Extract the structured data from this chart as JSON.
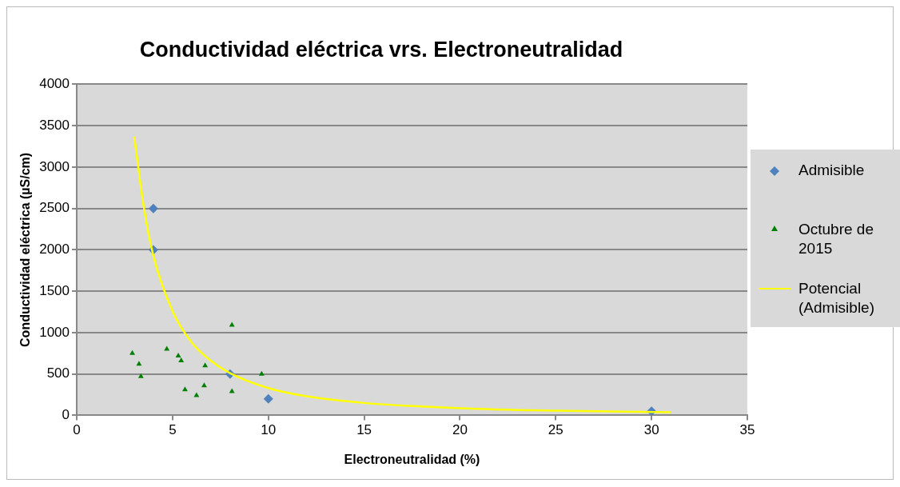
{
  "chart_data": {
    "type": "scatter",
    "title": "Conductividad eléctrica vrs. Electroneutralidad",
    "xlabel": "Electroneutralidad (%)",
    "ylabel": "Conductividad eléctrica (µS/cm)",
    "xlim": [
      0,
      35
    ],
    "xticks": [
      0,
      5,
      10,
      15,
      20,
      25,
      30,
      35
    ],
    "ylim": [
      0,
      4000
    ],
    "yticks": [
      0,
      500,
      1000,
      1500,
      2000,
      2500,
      3000,
      3500,
      4000
    ],
    "grid": "y",
    "legend": "right",
    "series": [
      {
        "name": "Admisible",
        "color": "#4f81bd",
        "marker": "diamond",
        "x": [
          4,
          4,
          8,
          10,
          30
        ],
        "values": [
          2500,
          2000,
          500,
          200,
          50
        ]
      },
      {
        "name": "Octubre de 2015",
        "color": "#008000",
        "marker": "triangle",
        "x": [
          2.9,
          3.25,
          3.35,
          4.7,
          5.3,
          5.45,
          5.65,
          6.25,
          6.65,
          6.7,
          8.1,
          8.1,
          9.65
        ],
        "values": [
          750,
          620,
          470,
          800,
          720,
          660,
          310,
          240,
          360,
          600,
          1090,
          290,
          500
        ]
      },
      {
        "name": "Potencial (Admisible)",
        "type": "line",
        "color": "#ffff00",
        "marker": "none",
        "x": [
          3,
          3.5,
          4,
          5,
          6,
          7,
          8,
          10,
          12,
          15,
          20,
          25,
          31
        ],
        "values": [
          3370,
          2520,
          1930,
          1260,
          880,
          660,
          510,
          330,
          230,
          150,
          87,
          57,
          37
        ]
      }
    ]
  }
}
